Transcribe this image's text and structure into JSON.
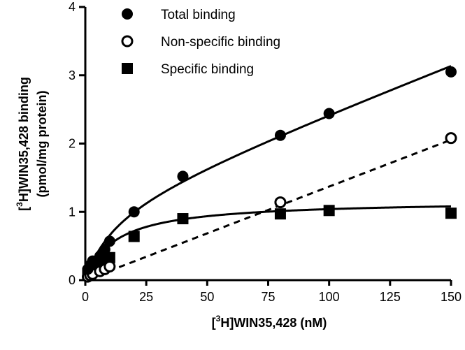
{
  "chart_data": {
    "type": "scatter",
    "title": "",
    "xlabel": {
      "pre": "[",
      "sup": "3",
      "post": "H]WIN35,428 (nM)"
    },
    "ylabel": {
      "line1": {
        "pre": "[",
        "sup": "3",
        "post": "H]WIN35,428 binding"
      },
      "line2": "(pmol/mg protein)"
    },
    "xlim": [
      0,
      150
    ],
    "ylim": [
      0,
      4
    ],
    "xticks": [
      0,
      25,
      50,
      75,
      100,
      125,
      150
    ],
    "yticks": [
      0,
      1,
      2,
      3,
      4
    ],
    "grid": false,
    "legend_position": "top-left",
    "series": [
      {
        "name": "Total binding",
        "marker": "filled-circle",
        "x": [
          1,
          2,
          3,
          6,
          8,
          10,
          20,
          40,
          80,
          100,
          150
        ],
        "y": [
          0.16,
          0.22,
          0.28,
          0.35,
          0.45,
          0.57,
          1.0,
          1.52,
          2.12,
          2.44,
          3.05
        ],
        "fit": "total"
      },
      {
        "name": "Non-specific binding",
        "marker": "open-circle",
        "x": [
          1,
          2,
          3,
          6,
          8,
          10,
          80,
          150
        ],
        "y": [
          0.05,
          0.07,
          0.09,
          0.13,
          0.16,
          0.2,
          1.14,
          2.08
        ],
        "fit": "linear"
      },
      {
        "name": "Specific binding",
        "marker": "filled-square",
        "x": [
          1,
          2,
          3,
          6,
          8,
          10,
          20,
          40,
          80,
          100,
          150
        ],
        "y": [
          0.1,
          0.15,
          0.18,
          0.24,
          0.3,
          0.33,
          0.64,
          0.9,
          0.97,
          1.02,
          0.98
        ],
        "fit": "hyperbolic"
      }
    ],
    "fit_params": {
      "bmax": 1.17,
      "kd": 12.5,
      "nonspecific_slope": 0.0137
    }
  }
}
